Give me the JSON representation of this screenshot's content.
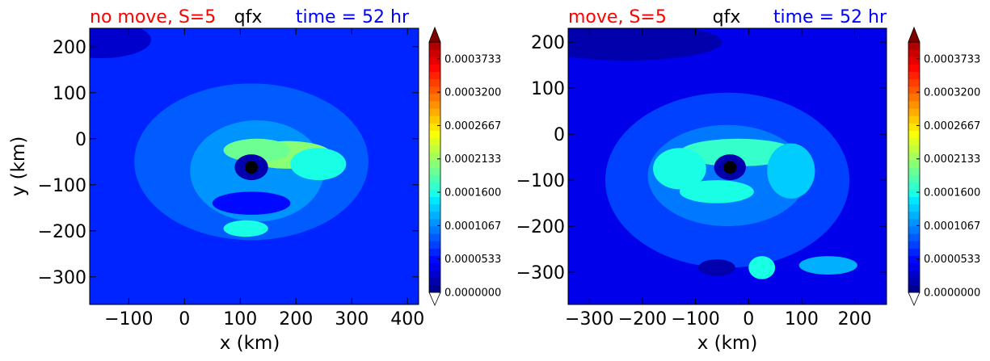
{
  "colorbar": {
    "ticks": [
      "0.0000000",
      "0.0000533",
      "0.0001067",
      "0.0001600",
      "0.0002133",
      "0.0002667",
      "0.0003200",
      "0.0003733"
    ],
    "colors": [
      "#00008f",
      "#0000ad",
      "#0000cc",
      "#0000eb",
      "#0008ff",
      "#0024ff",
      "#0040ff",
      "#005cff",
      "#0078ff",
      "#0094ff",
      "#00b0ff",
      "#00ccff",
      "#00e8ff",
      "#19ffe6",
      "#35ffca",
      "#51ffae",
      "#6dff92",
      "#89ff76",
      "#a5ff5a",
      "#c1ff3e",
      "#ddff22",
      "#f9ff06",
      "#ffe500",
      "#ffc900",
      "#ffad00",
      "#ff9100",
      "#ff7500",
      "#ff5900",
      "#ff3d00",
      "#ff2100",
      "#ff0500",
      "#e80000",
      "#cc0000",
      "#b00000"
    ],
    "under_color": "#ffffff",
    "over_color": "#800000"
  },
  "chart_data": [
    {
      "type": "heatmap",
      "variable": "qfx",
      "title_left": "no move, S=5",
      "title_center": "qfx",
      "title_right": "time = 52 hr",
      "title_left_color": "#ff0000",
      "title_right_color": "#0000ff",
      "xlabel": "x (km)",
      "ylabel": "y (km)",
      "xlim": [
        -170,
        420
      ],
      "ylim": [
        -360,
        240
      ],
      "xticks": [
        -100,
        0,
        100,
        200,
        300,
        400
      ],
      "xtick_labels": [
        "−100",
        "0",
        "100",
        "200",
        "300",
        "400"
      ],
      "yticks": [
        -300,
        -200,
        -100,
        0,
        100,
        200
      ],
      "ytick_labels": [
        "−300",
        "−200",
        "−100",
        "0",
        "100",
        "200"
      ],
      "center_marker": {
        "x": 120,
        "y": -62
      },
      "zlim": [
        0,
        0.0004
      ],
      "background_value": 6e-05,
      "features": [
        {
          "x": 120,
          "y": -50,
          "rx": 210,
          "ry": 170,
          "value": 9e-05
        },
        {
          "x": 130,
          "y": -70,
          "rx": 120,
          "ry": 110,
          "value": 0.000115
        },
        {
          "x": 185,
          "y": -35,
          "rx": 80,
          "ry": 30,
          "value": 0.000205
        },
        {
          "x": 130,
          "y": -25,
          "rx": 60,
          "ry": 25,
          "value": 0.00019
        },
        {
          "x": 240,
          "y": -55,
          "rx": 50,
          "ry": 35,
          "value": 0.00016
        },
        {
          "x": 110,
          "y": -195,
          "rx": 40,
          "ry": 18,
          "value": 0.000155
        },
        {
          "x": 120,
          "y": -62,
          "rx": 30,
          "ry": 28,
          "value": 2e-05
        },
        {
          "x": 120,
          "y": -140,
          "rx": 70,
          "ry": 25,
          "value": 5e-05
        },
        {
          "x": -150,
          "y": 215,
          "rx": 90,
          "ry": 40,
          "value": 3e-05
        }
      ]
    },
    {
      "type": "heatmap",
      "variable": "qfx",
      "title_left": "move, S=5",
      "title_center": "qfx",
      "title_right": "time = 52 hr",
      "title_left_color": "#ff0000",
      "title_right_color": "#0000ff",
      "xlabel": "x (km)",
      "ylabel": "",
      "xlim": [
        -340,
        260
      ],
      "ylim": [
        -370,
        230
      ],
      "xticks": [
        -300,
        -200,
        -100,
        0,
        100,
        200
      ],
      "xtick_labels": [
        "−300",
        "−200",
        "−100",
        "0",
        "100",
        "200"
      ],
      "yticks": [
        -300,
        -200,
        -100,
        0,
        100,
        200
      ],
      "ytick_labels": [
        "−300",
        "−200",
        "−100",
        "0",
        "100",
        "200"
      ],
      "center_marker": {
        "x": -35,
        "y": -72
      },
      "zlim": [
        0,
        0.0004
      ],
      "background_value": 4.5e-05,
      "features": [
        {
          "x": -40,
          "y": -100,
          "rx": 230,
          "ry": 190,
          "value": 8e-05
        },
        {
          "x": -40,
          "y": -90,
          "rx": 150,
          "ry": 110,
          "value": 0.000105
        },
        {
          "x": -20,
          "y": -40,
          "rx": 110,
          "ry": 30,
          "value": 0.00017
        },
        {
          "x": -130,
          "y": -75,
          "rx": 50,
          "ry": 45,
          "value": 0.00016
        },
        {
          "x": -60,
          "y": -125,
          "rx": 70,
          "ry": 25,
          "value": 0.000155
        },
        {
          "x": 80,
          "y": -80,
          "rx": 45,
          "ry": 60,
          "value": 0.00013
        },
        {
          "x": 25,
          "y": -290,
          "rx": 25,
          "ry": 25,
          "value": 0.00016
        },
        {
          "x": 150,
          "y": -285,
          "rx": 55,
          "ry": 20,
          "value": 0.00012
        },
        {
          "x": -35,
          "y": -72,
          "rx": 30,
          "ry": 28,
          "value": 1.5e-05
        },
        {
          "x": -60,
          "y": -290,
          "rx": 35,
          "ry": 18,
          "value": 2e-05
        },
        {
          "x": -230,
          "y": 200,
          "rx": 180,
          "ry": 40,
          "value": 2e-05
        }
      ]
    }
  ]
}
